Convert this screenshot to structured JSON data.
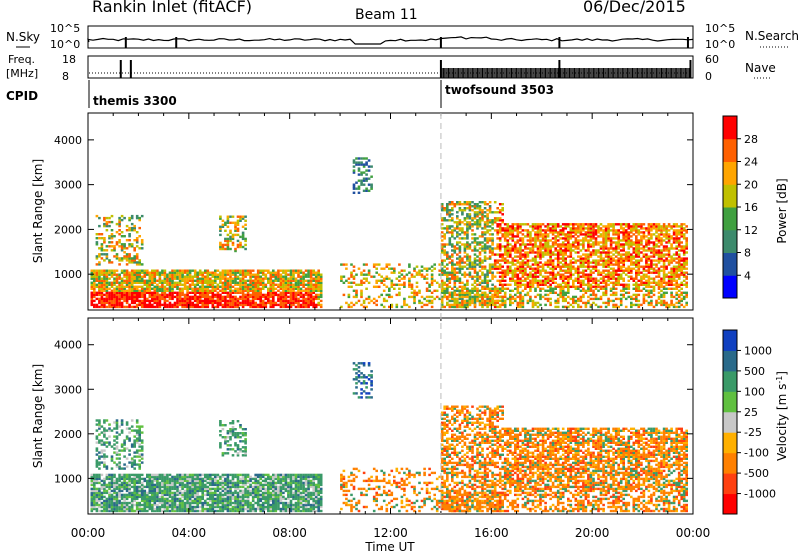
{
  "header": {
    "station": "Rankin Inlet (fitACF)",
    "beam": "Beam 11",
    "date": "06/Dec/2015"
  },
  "noise_panel": {
    "left_label": "N.Sky",
    "right_label": "N.Search",
    "left_ticks": [
      "10^5",
      "10^0"
    ],
    "right_ticks": [
      "10^5",
      "10^0"
    ]
  },
  "freq_panel": {
    "left_label_1": "Freq.",
    "left_label_2": "[MHz]",
    "right_label": "Nave",
    "left_ticks": [
      "18",
      "8"
    ],
    "right_ticks": [
      "60",
      "0"
    ]
  },
  "cpid": {
    "label": "CPID",
    "programs": [
      {
        "name": "themis 3300",
        "start_hour": 0
      },
      {
        "name": "twofsound 3503",
        "start_hour": 14
      }
    ]
  },
  "colors": {
    "scale": [
      "#0000ff",
      "#2050a0",
      "#3c8a6c",
      "#40a040",
      "#c0c000",
      "#ffa500",
      "#ff6000",
      "#ff0000"
    ],
    "velocity": [
      "#1040c0",
      "#2a6a8a",
      "#3a9a68",
      "#60c040",
      "#c8c8c8",
      "#ffb000",
      "#ff8000",
      "#ff4010",
      "#ff0000"
    ]
  },
  "chart_data": [
    {
      "type": "heatmap",
      "title": "Power",
      "ylabel": "Slant Range [km]",
      "colorbar_label": "Power [dB]",
      "colorbar_ticks": [
        "28",
        "24",
        "20",
        "16",
        "12",
        "8",
        "4"
      ],
      "ylim": [
        200,
        4600
      ],
      "yticks": [
        1000,
        2000,
        3000,
        4000
      ],
      "xlim": [
        0,
        24
      ]
    },
    {
      "type": "heatmap",
      "title": "Velocity",
      "ylabel": "Slant Range [km]",
      "colorbar_label": "Velocity [m s",
      "colorbar_label_sup": "-1",
      "colorbar_label_end": "]",
      "colorbar_ticks": [
        "1000",
        "500",
        "100",
        "25",
        "-25",
        "-100",
        "-500",
        "-1000"
      ],
      "ylim": [
        200,
        4600
      ],
      "yticks": [
        1000,
        2000,
        3000,
        4000
      ],
      "xlim": [
        0,
        24
      ],
      "xticks": [
        "00:00",
        "04:00",
        "08:00",
        "12:00",
        "16:00",
        "20:00",
        "00:00"
      ],
      "xlabel": "Time UT"
    }
  ]
}
